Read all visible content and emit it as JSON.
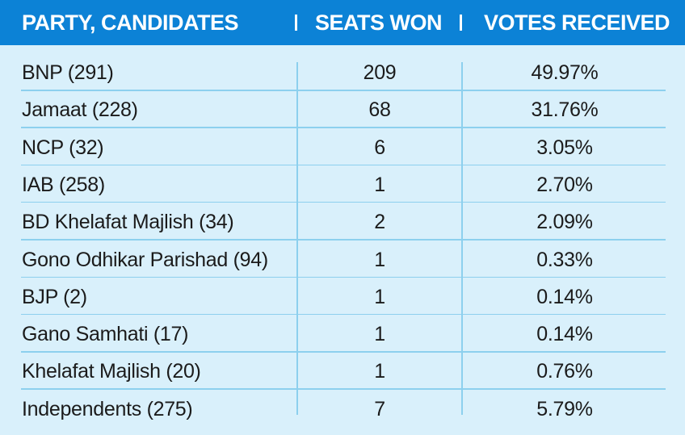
{
  "chart_data": {
    "type": "table",
    "columns": [
      "PARTY, CANDIDATES",
      "SEATS WON",
      "VOTES RECEIVED"
    ],
    "rows": [
      {
        "party": "BNP (291)",
        "seats": "209",
        "votes": "49.97%"
      },
      {
        "party": "Jamaat (228)",
        "seats": "68",
        "votes": "31.76%"
      },
      {
        "party": "NCP (32)",
        "seats": "6",
        "votes": "3.05%"
      },
      {
        "party": "IAB (258)",
        "seats": "1",
        "votes": "2.70%"
      },
      {
        "party": "BD Khelafat Majlish (34)",
        "seats": "2",
        "votes": "2.09%"
      },
      {
        "party": "Gono Odhikar Parishad (94)",
        "seats": "1",
        "votes": "0.33%"
      },
      {
        "party": "BJP (2)",
        "seats": "1",
        "votes": "0.14%"
      },
      {
        "party": "Gano Samhati (17)",
        "seats": "1",
        "votes": "0.14%"
      },
      {
        "party": "Khelafat Majlish (20)",
        "seats": "1",
        "votes": "0.76%"
      },
      {
        "party": "Independents (275)",
        "seats": "7",
        "votes": "5.79%"
      }
    ]
  },
  "colors": {
    "header_bg": "#0c82d6",
    "header_text": "#ffffff",
    "panel_bg": "#d9f0fb",
    "rule": "#8dd0ee",
    "body_text": "#1b1b1b"
  }
}
